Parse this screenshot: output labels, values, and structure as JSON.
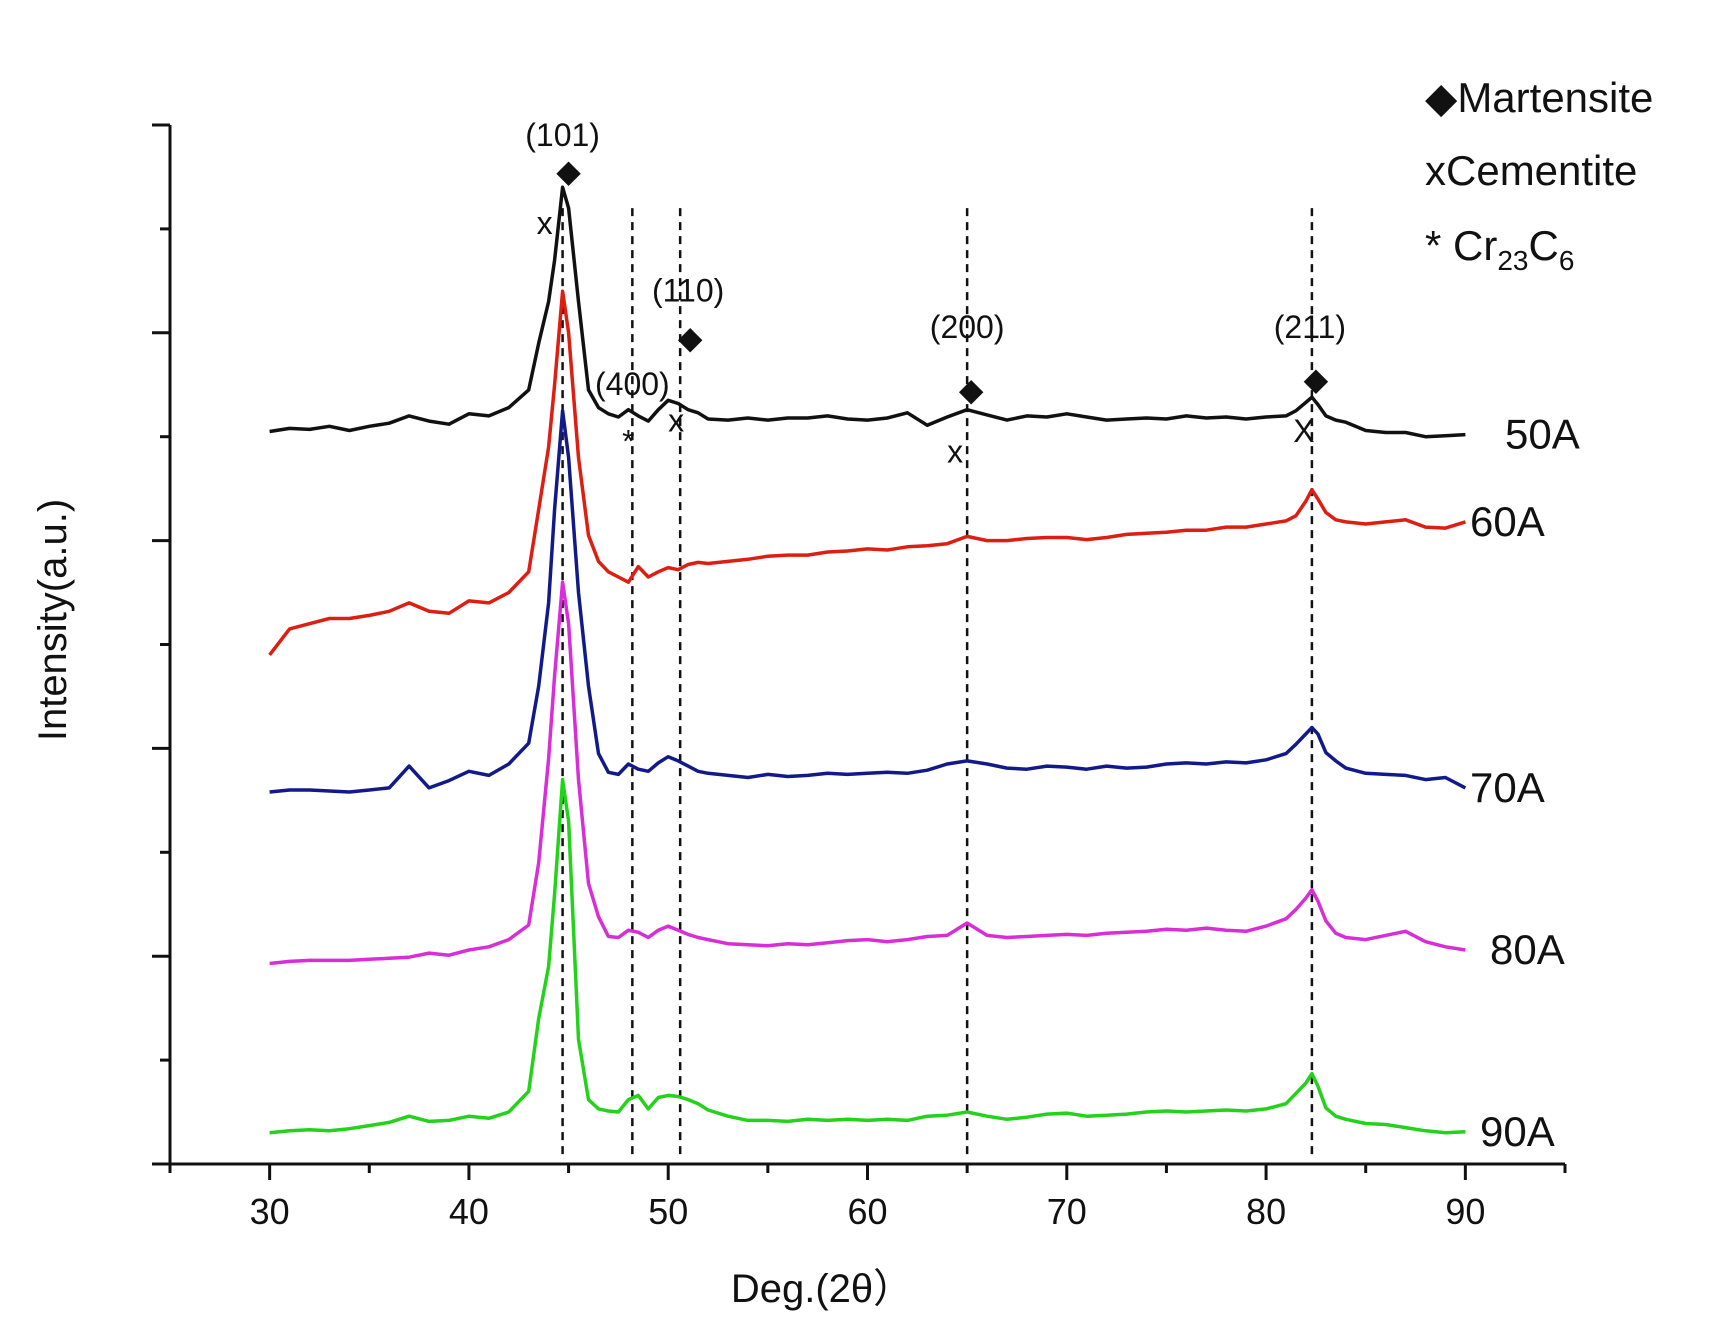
{
  "chart_data": {
    "type": "line",
    "title": "",
    "xlabel": "Deg.(2θ）",
    "ylabel": "Intensity(a.u.)",
    "xlim": [
      25,
      95
    ],
    "ylim": [
      0,
      100
    ],
    "xticks": [
      30,
      40,
      50,
      60,
      70,
      80,
      90
    ],
    "legend": [
      {
        "symbol": "◆",
        "label": "Martensite",
        "sub": "",
        "tail": ""
      },
      {
        "symbol": "x",
        "label": "Cementite",
        "sub": "",
        "tail": ""
      },
      {
        "symbol": "*",
        "label": " Cr",
        "sub": "23",
        "tail": "C",
        "sub2": "6"
      }
    ],
    "reference_lines": [
      44.7,
      48.2,
      50.6,
      65.0,
      82.3
    ],
    "peak_labels": [
      {
        "text": "(101)",
        "x": 44.7,
        "y": 98
      },
      {
        "text": "(400)",
        "x": 48.2,
        "y": 74
      },
      {
        "text": "(110)",
        "x": 51.0,
        "y": 83
      },
      {
        "text": "(200)",
        "x": 65.0,
        "y": 79.5
      },
      {
        "text": "(211)",
        "x": 82.2,
        "y": 79.5
      }
    ],
    "markers": [
      {
        "symbol": "◆",
        "x": 45.0,
        "y": 94.5
      },
      {
        "symbol": "x",
        "x": 43.8,
        "y": 89.5
      },
      {
        "symbol": "◆",
        "x": 51.1,
        "y": 78.5
      },
      {
        "symbol": "*",
        "x": 48.0,
        "y": 68.5
      },
      {
        "symbol": "x",
        "x": 50.4,
        "y": 70.5
      },
      {
        "symbol": "◆",
        "x": 65.2,
        "y": 73.5
      },
      {
        "symbol": "x",
        "x": 64.4,
        "y": 67.5
      },
      {
        "symbol": "◆",
        "x": 82.5,
        "y": 74.5
      },
      {
        "symbol": "X",
        "x": 81.9,
        "y": 69.5
      }
    ],
    "x": [
      30,
      31,
      32,
      33,
      34,
      35,
      36,
      37,
      38,
      39,
      40,
      41,
      42,
      43,
      43.5,
      44,
      44.3,
      44.7,
      45,
      45.5,
      46,
      46.5,
      47,
      47.5,
      48,
      48.5,
      49,
      49.5,
      50,
      50.5,
      51,
      51.5,
      52,
      53,
      54,
      55,
      56,
      57,
      58,
      59,
      60,
      61,
      62,
      63,
      64,
      65,
      66,
      67,
      68,
      69,
      70,
      71,
      72,
      73,
      74,
      75,
      76,
      77,
      78,
      79,
      80,
      81,
      81.5,
      82,
      82.3,
      82.6,
      83,
      83.5,
      84,
      85,
      86,
      87,
      88,
      89,
      90
    ],
    "series": [
      {
        "name": "50A",
        "color": "#111111",
        "label": "50A",
        "values": [
          70.5,
          70.8,
          70.7,
          71.0,
          70.6,
          71.0,
          71.3,
          72.0,
          71.5,
          71.2,
          72.2,
          72.0,
          72.8,
          74.5,
          79,
          83,
          87,
          94,
          92,
          83,
          74.5,
          72.8,
          72.2,
          71.9,
          72.6,
          72.0,
          71.5,
          72.6,
          73.5,
          73.2,
          72.6,
          72.3,
          71.7,
          71.6,
          71.8,
          71.6,
          71.8,
          71.8,
          72.0,
          71.7,
          71.6,
          71.8,
          72.3,
          71.1,
          71.9,
          72.6,
          72.1,
          71.6,
          72.0,
          71.9,
          72.2,
          71.9,
          71.6,
          71.7,
          71.8,
          71.7,
          72.0,
          71.8,
          71.9,
          71.7,
          71.9,
          72.0,
          72.5,
          73.3,
          73.8,
          73.1,
          72.0,
          71.6,
          71.4,
          70.6,
          70.4,
          70.4,
          70.0,
          70.1,
          70.2
        ]
      },
      {
        "name": "60A",
        "color": "#dd1e12",
        "label": "60A",
        "values": [
          49,
          51.5,
          52,
          52.5,
          52.5,
          52.8,
          53.2,
          54,
          53.2,
          53,
          54.2,
          54,
          55,
          57,
          63,
          69,
          75,
          84,
          80,
          68,
          60.5,
          58,
          57,
          56.5,
          56.0,
          57.5,
          56.5,
          57,
          57.4,
          57.2,
          57.7,
          57.9,
          57.8,
          58,
          58.2,
          58.5,
          58.6,
          58.6,
          58.9,
          59,
          59.2,
          59.1,
          59.4,
          59.5,
          59.7,
          60.4,
          60.0,
          60,
          60.2,
          60.3,
          60.3,
          60.1,
          60.3,
          60.6,
          60.7,
          60.8,
          61,
          61,
          61.3,
          61.3,
          61.6,
          61.9,
          62.4,
          63.8,
          64.9,
          64.0,
          62.7,
          62.0,
          61.8,
          61.6,
          61.8,
          62.0,
          61.3,
          61.2,
          61.8
        ]
      },
      {
        "name": "70A",
        "color": "#121a8a",
        "label": "70A",
        "values": [
          35.8,
          36,
          36,
          35.9,
          35.8,
          36,
          36.2,
          38.3,
          36.2,
          36.9,
          37.8,
          37.4,
          38.5,
          40.5,
          46,
          54,
          63,
          72.5,
          68,
          55,
          46,
          39.5,
          37.7,
          37.5,
          38.5,
          38.0,
          37.8,
          38.6,
          39.2,
          38.8,
          38.3,
          37.8,
          37.6,
          37.4,
          37.2,
          37.5,
          37.3,
          37.4,
          37.6,
          37.5,
          37.6,
          37.7,
          37.6,
          37.9,
          38.5,
          38.8,
          38.5,
          38.1,
          38.0,
          38.3,
          38.2,
          38.0,
          38.3,
          38.1,
          38.2,
          38.5,
          38.6,
          38.5,
          38.7,
          38.6,
          38.9,
          39.5,
          40.4,
          41.4,
          42.0,
          41.4,
          39.6,
          38.8,
          38.1,
          37.6,
          37.5,
          37.4,
          37.0,
          37.2,
          36.2
        ]
      },
      {
        "name": "80A",
        "color": "#d82ed8",
        "label": "80A",
        "values": [
          19.3,
          19.5,
          19.6,
          19.6,
          19.6,
          19.7,
          19.8,
          19.9,
          20.3,
          20.1,
          20.6,
          20.9,
          21.6,
          23,
          29,
          39,
          47,
          56,
          52,
          37,
          27,
          23.8,
          21.9,
          21.8,
          22.5,
          22.3,
          21.8,
          22.5,
          22.9,
          22.5,
          22.1,
          21.8,
          21.6,
          21.2,
          21.1,
          21.0,
          21.2,
          21.1,
          21.3,
          21.5,
          21.6,
          21.4,
          21.6,
          21.9,
          22.0,
          23.2,
          22.0,
          21.8,
          21.9,
          22.0,
          22.1,
          22.0,
          22.2,
          22.3,
          22.4,
          22.6,
          22.5,
          22.7,
          22.5,
          22.4,
          22.9,
          23.6,
          24.5,
          25.6,
          26.4,
          25.3,
          23.4,
          22.2,
          21.8,
          21.6,
          22.0,
          22.4,
          21.4,
          20.9,
          20.6
        ]
      },
      {
        "name": "90A",
        "color": "#25d21b",
        "label": "90A",
        "values": [
          3,
          3.2,
          3.3,
          3.2,
          3.4,
          3.7,
          4,
          4.6,
          4.1,
          4.2,
          4.6,
          4.4,
          5.0,
          7,
          14,
          19,
          26,
          37,
          33,
          12,
          6.2,
          5.3,
          5.1,
          5.0,
          6.2,
          6.6,
          5.3,
          6.4,
          6.6,
          6.5,
          6.2,
          5.8,
          5.2,
          4.6,
          4.2,
          4.2,
          4.1,
          4.3,
          4.2,
          4.3,
          4.2,
          4.3,
          4.2,
          4.6,
          4.7,
          5.0,
          4.6,
          4.3,
          4.5,
          4.8,
          4.9,
          4.6,
          4.7,
          4.8,
          5.0,
          5.1,
          5.0,
          5.1,
          5.2,
          5.1,
          5.3,
          5.8,
          6.8,
          7.8,
          8.7,
          7.5,
          5.4,
          4.6,
          4.3,
          3.9,
          3.8,
          3.5,
          3.2,
          3.0,
          3.1
        ]
      }
    ]
  }
}
